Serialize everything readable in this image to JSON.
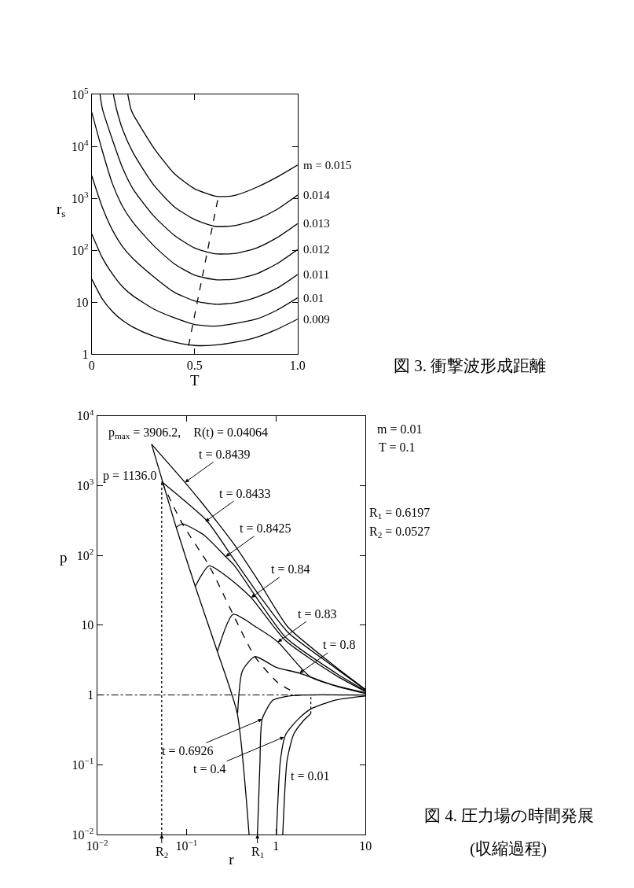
{
  "chart_data": [
    {
      "type": "line",
      "annotations": [
        "図 3. 衝撃波形成距離"
      ],
      "xlabel": "T",
      "ylabel": "r$_{s}$",
      "log": "y",
      "legend": "right",
      "marker": "none",
      "xlim": [
        0,
        1.0
      ],
      "ylim": [
        1,
        100000
      ],
      "xticks": [
        0,
        0.5,
        {
          "value": 1,
          "label": "1.0"
        }
      ],
      "yticks": [
        1,
        10,
        {
          "value": 100,
          "label": "10$^{2}$"
        },
        {
          "value": 1000,
          "label": "10$^{3}$"
        },
        {
          "value": 10000,
          "label": "10$^{4}$"
        },
        {
          "value": 100000,
          "label": "10$^{5}$"
        }
      ],
      "series": [
        {
          "name": "m = 0.015",
          "color": "#000000",
          "line_style": "solid",
          "x": [
            0.175,
            0.19,
            0.2,
            0.3,
            0.4,
            0.5,
            0.6,
            0.65,
            0.7,
            0.8,
            0.9,
            1.0
          ],
          "values": [
            100000,
            52000,
            42000,
            9500,
            3000,
            1520,
            1100,
            1080,
            1150,
            1620,
            2560,
            4370
          ]
        },
        {
          "name": "0.014",
          "color": "#000000",
          "line_style": "solid",
          "x": [
            0.105,
            0.12,
            0.15,
            0.2,
            0.3,
            0.4,
            0.5,
            0.6,
            0.7,
            0.8,
            0.9,
            1.0
          ],
          "values": [
            100000,
            52000,
            21000,
            7600,
            1820,
            690,
            390,
            288,
            300,
            390,
            610,
            1150
          ]
        },
        {
          "name": "0.013",
          "color": "#000000",
          "line_style": "solid",
          "x": [
            0.04,
            0.052,
            0.1,
            0.15,
            0.2,
            0.3,
            0.4,
            0.5,
            0.6,
            0.7,
            0.8,
            0.9,
            1.0
          ],
          "values": [
            100000,
            52000,
            13500,
            3800,
            1520,
            460,
            195,
            110,
            85,
            87,
            110,
            174,
            325
          ]
        },
        {
          "name": "0.012",
          "color": "#000000",
          "line_style": "solid",
          "x": [
            0,
            0.05,
            0.1,
            0.15,
            0.2,
            0.3,
            0.4,
            0.5,
            0.6,
            0.7,
            0.8,
            0.9,
            1.0
          ],
          "values": [
            45000,
            8500,
            1920,
            690,
            345,
            123,
            55,
            33,
            27,
            27.7,
            35,
            55,
            103
          ]
        },
        {
          "name": "0.011",
          "color": "#000000",
          "line_style": "solid",
          "x": [
            0,
            0.05,
            0.1,
            0.15,
            0.2,
            0.3,
            0.4,
            0.5,
            0.6,
            0.7,
            0.8,
            0.9,
            1.0
          ],
          "values": [
            2700,
            690,
            245,
            116,
            69,
            31,
            15.6,
            10.5,
            9.1,
            9.7,
            12.4,
            18.5,
            34
          ]
        },
        {
          "name": "0.01",
          "color": "#000000",
          "line_style": "solid",
          "x": [
            0,
            0.05,
            0.1,
            0.15,
            0.2,
            0.3,
            0.4,
            0.5,
            0.6,
            0.7,
            0.8,
            0.9,
            1.0
          ],
          "values": [
            205,
            73,
            35,
            19.6,
            13.2,
            7.4,
            5.0,
            3.7,
            3.45,
            3.9,
            4.7,
            7.0,
            12.1
          ]
        },
        {
          "name": "0.009",
          "color": "#000000",
          "line_style": "solid",
          "x": [
            0,
            0.05,
            0.1,
            0.15,
            0.2,
            0.3,
            0.4,
            0.5,
            0.6,
            0.7,
            0.8,
            0.9,
            1.0
          ],
          "values": [
            27.7,
            11.7,
            6.6,
            4.4,
            3.3,
            2.2,
            1.7,
            1.46,
            1.49,
            1.7,
            2.1,
            3.0,
            4.7
          ]
        },
        {
          "color": "#000000",
          "line_style": "dashed",
          "x": [
            0.47,
            0.615
          ],
          "values": [
            1.44,
            1080
          ]
        }
      ]
    },
    {
      "type": "line",
      "xlabel": "r",
      "ylabel": "p",
      "log": "xy",
      "marker": "none",
      "xlim": [
        0.01,
        10
      ],
      "ylim": [
        0.01,
        10000
      ],
      "xticks": [
        {
          "value": 0.01,
          "label": "10$^{−2}$"
        },
        {
          "value": 0.1,
          "label": "10$^{−1}$"
        },
        1,
        10
      ],
      "yticks": [
        {
          "value": 0.01,
          "label": "10$^{−2}$"
        },
        {
          "value": 0.1,
          "label": "10$^{−1}$"
        },
        1,
        10,
        {
          "value": 100,
          "label": "10$^{2}$"
        },
        {
          "value": 1000,
          "label": "10$^{3}$"
        },
        {
          "value": 10000,
          "label": "10$^{4}$"
        }
      ],
      "series": [
        {
          "color": "#000000",
          "line_style": "solid",
          "x": [
            0.04064,
            0.096,
            0.179,
            0.344,
            0.66,
            1.36,
            4.7,
            10
          ],
          "values": [
            3906.2,
            1110,
            420,
            141,
            40,
            9.4,
            2.5,
            1.2
          ]
        },
        {
          "color": "#000000",
          "line_style": "solid",
          "x": [
            0.0527,
            0.168,
            0.344,
            0.66,
            1.36,
            4.7,
            10
          ],
          "values": [
            1136,
            314,
            85,
            26,
            7.9,
            2.4,
            1.18
          ]
        },
        {
          "color": "#000000",
          "line_style": "solid",
          "x": [
            0.0766,
            0.09,
            0.156,
            0.274,
            0.344,
            1.28,
            4.7,
            10
          ],
          "values": [
            252,
            282,
            196,
            96,
            71,
            6.7,
            2.05,
            1.15
          ]
        },
        {
          "color": "#000000",
          "line_style": "solid",
          "x": [
            0.125,
            0.179,
            0.3,
            0.527,
            1.28,
            4.7,
            10
          ],
          "values": [
            36,
            71,
            47,
            24.8,
            6.0,
            1.9,
            1.12
          ]
        },
        {
          "color": "#000000",
          "line_style": "solid",
          "x": [
            0.221,
            0.331,
            0.6,
            1.05,
            2.45,
            10
          ],
          "values": [
            4.2,
            14.3,
            9.4,
            5.75,
            1.8,
            1.08
          ]
        },
        {
          "color": "#000000",
          "line_style": "solid",
          "x": [
            0.372,
            0.42,
            0.58,
            1.0,
            1.83,
            4.7,
            10
          ],
          "values": [
            0.55,
            2.2,
            3.55,
            2.5,
            2.05,
            1.34,
            1.05
          ]
        },
        {
          "color": "#000000",
          "line_style": "solid",
          "x": [
            0.62,
            0.66,
            0.7,
            0.92,
            1.28,
            2.0,
            10
          ],
          "values": [
            0.01,
            0.1,
            0.45,
            0.84,
            0.95,
            1.0,
            1.0
          ]
        },
        {
          "color": "#000000",
          "line_style": "solid",
          "x": [
            1.01,
            1.12,
            1.28,
            1.77,
            2.45,
            4.7,
            10
          ],
          "values": [
            0.01,
            0.115,
            0.27,
            0.45,
            0.63,
            0.85,
            0.97
          ]
        },
        {
          "color": "#000000",
          "line_style": "solid",
          "x": [
            1.19,
            1.33,
            1.57,
            2.0,
            2.45
          ],
          "values": [
            0.01,
            0.115,
            0.27,
            0.42,
            0.54
          ]
        },
        {
          "color": "#000000",
          "line_style": "dotted",
          "x": [
            2.45,
            2.45
          ],
          "values": [
            0.54,
            1.0
          ]
        },
        {
          "color": "#000000",
          "line_style": "solid",
          "x": [
            0.04064,
            0.0766,
            0.125,
            0.221,
            0.368,
            0.5
          ],
          "values": [
            3906.2,
            252,
            36,
            4.2,
            0.55,
            0.01
          ]
        },
        {
          "color": "#000000",
          "line_style": "dashed",
          "x": [
            0.0527,
            0.09,
            0.179,
            0.331,
            0.58,
            1.05,
            1.6
          ],
          "values": [
            1136,
            282,
            71,
            14.3,
            3.55,
            1.5,
            1.09
          ]
        },
        {
          "color": "#000000",
          "line_style": "dotted",
          "x": [
            0.0527,
            0.0527
          ],
          "values": [
            0.01,
            1136
          ]
        }
      ],
      "ref_lines": [
        {
          "axis": "y",
          "value": 1,
          "color": "#000000",
          "line_style": "dashdot"
        }
      ],
      "annotations": [
        "p$_{max}$ = 3906.2,    R(t) = 0.04064",
        "p = 1136.0",
        "m = 0.01",
        "T = 0.1",
        "R$_{1}$ = 0.6197",
        "R$_{2}$ = 0.0527",
        "t = 0.01",
        "図 4. 圧力場の時間発展",
        "(収縮過程)",
        {
          "text": "R$_{2}$",
          "x": 0.0527,
          "y": 0.01
        },
        {
          "text": "R$_{1}$",
          "x": 0.62,
          "y": 0.01
        },
        {
          "text": "t = 0.8439",
          "x": 0.096,
          "y": 1110
        },
        {
          "text": "t = 0.8433",
          "x": 0.162,
          "y": 305
        },
        {
          "text": "t = 0.8425",
          "x": 0.274,
          "y": 96
        },
        {
          "text": "t = 0.84",
          "x": 0.527,
          "y": 24.8
        },
        {
          "text": "t = 0.83",
          "x": 1.05,
          "y": 5.75
        },
        {
          "text": "t = 0.8",
          "x": 1.83,
          "y": 2.05
        },
        {
          "text": "t = 0.6926",
          "x": 0.7,
          "y": 0.45
        },
        {
          "text": "t = 0.4",
          "x": 1.23,
          "y": 0.25
        }
      ]
    }
  ]
}
